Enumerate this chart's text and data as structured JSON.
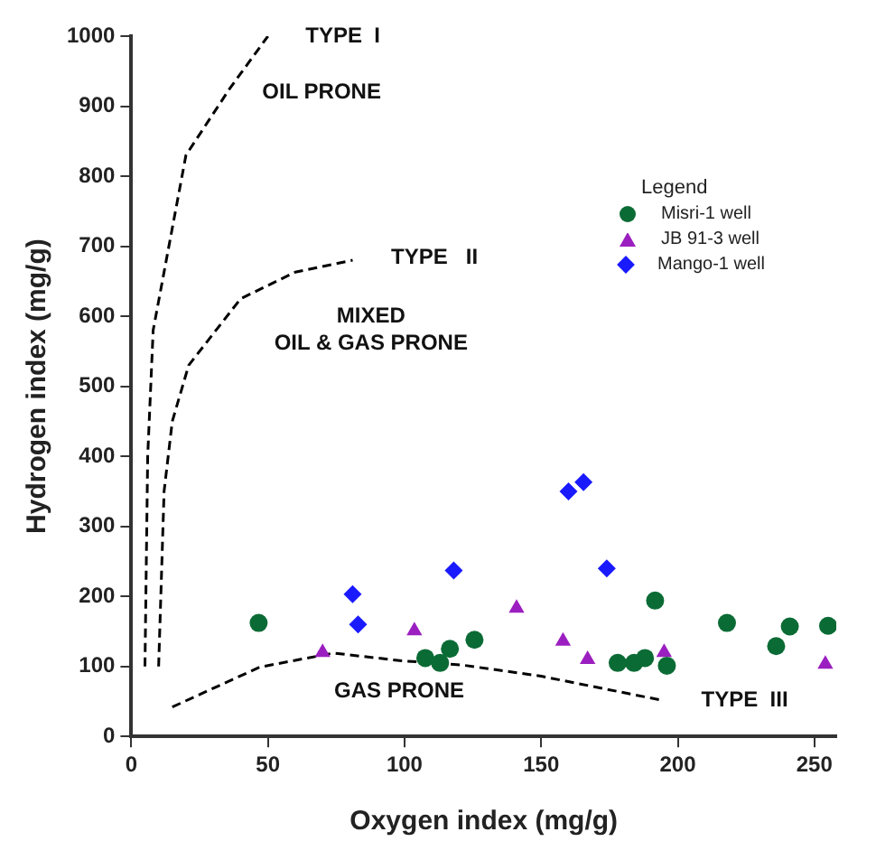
{
  "chart_data": {
    "type": "scatter",
    "xlabel": "Oxygen index (mg/g)",
    "ylabel": "Hydrogen index (mg/g)",
    "legend_title": "Legend",
    "legend": "top right",
    "grid": false,
    "xlim": [
      0,
      258
    ],
    "xticks": [
      0,
      50,
      100,
      150,
      200,
      250
    ],
    "ylim": [
      0,
      1000
    ],
    "yticks": [
      0,
      100,
      200,
      300,
      400,
      500,
      600,
      700,
      800,
      900,
      1000
    ],
    "series": [
      {
        "name": "Misri-1 well",
        "color": "#0b6b35",
        "marker": "circle",
        "x": [
          46.6,
          107.6,
          113,
          116.6,
          125.6,
          178,
          184,
          188,
          191.7,
          196,
          218,
          236,
          241,
          255
        ],
        "values": [
          162,
          112,
          105,
          125,
          138,
          105,
          105,
          112,
          194,
          101,
          162,
          129,
          157,
          158
        ]
      },
      {
        "name": "JB 91-3 well",
        "color": "#9b1fc0",
        "marker": "triangle",
        "x": [
          70,
          103.6,
          141,
          158,
          167,
          195,
          254
        ],
        "values": [
          120,
          151,
          183,
          136,
          110,
          120,
          103
        ]
      },
      {
        "name": "Mango-1 well",
        "color": "#1a1aff",
        "marker": "diamond",
        "x": [
          81,
          83,
          118,
          160,
          165.5,
          174
        ],
        "values": [
          203,
          160,
          237,
          350,
          363,
          240
        ]
      },
      {
        "type": "line",
        "color": "#000000",
        "marker": "none",
        "line_style": "dashed",
        "x": [
          5,
          6,
          8,
          20,
          36,
          50
        ],
        "values": [
          100,
          400,
          580,
          830,
          925,
          1000
        ]
      },
      {
        "type": "line",
        "color": "#000000",
        "marker": "none",
        "line_style": "dashed",
        "x": [
          10,
          12,
          15,
          21,
          40,
          60,
          81
        ],
        "values": [
          100,
          350,
          450,
          530,
          625,
          663,
          680
        ]
      },
      {
        "type": "line",
        "color": "#000000",
        "marker": "none",
        "line_style": "dashed",
        "x": [
          15,
          47,
          74,
          99,
          121,
          150,
          195
        ],
        "values": [
          42,
          99,
          119,
          108,
          102,
          86,
          51
        ]
      }
    ],
    "annotations": [
      "TYPE  I",
      "OIL PRONE",
      "TYPE   II",
      "MIXED\nOIL & GAS PRONE",
      "GAS PRONE",
      "TYPE  III"
    ]
  }
}
